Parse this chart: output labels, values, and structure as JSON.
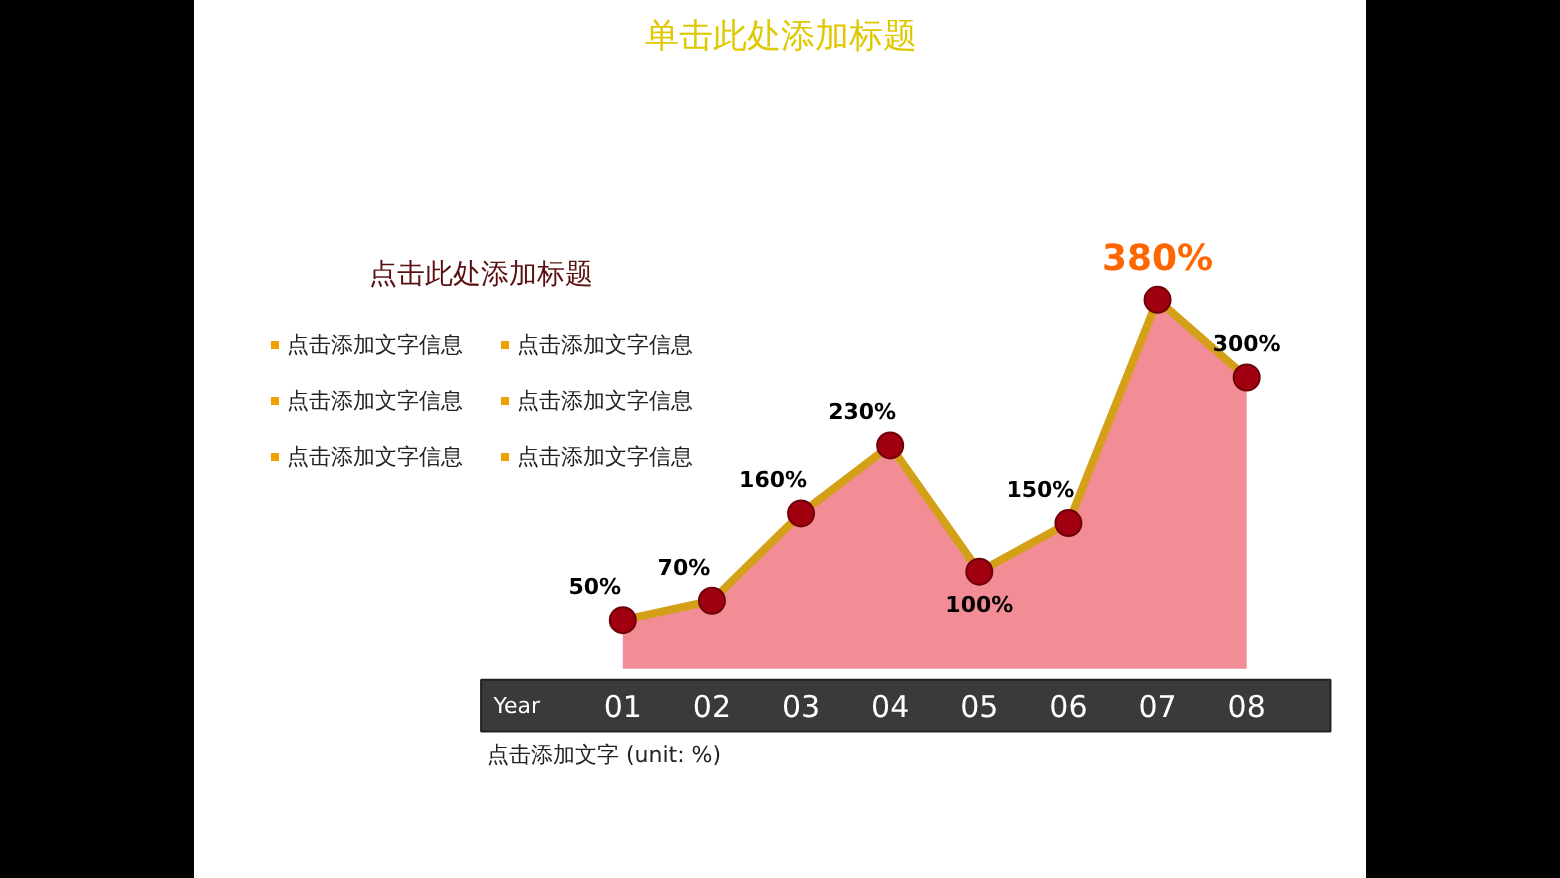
{
  "chart_data": {
    "type": "area",
    "title": "单击此处添加标题",
    "subtitle": "点击此处添加标题",
    "xlabel": "Year",
    "categories": [
      "01",
      "02",
      "03",
      "04",
      "05",
      "06",
      "07",
      "08"
    ],
    "series": [
      {
        "color": "#e8303f",
        "values": [
          50,
          70,
          160,
          230,
          100,
          150,
          380,
          300
        ],
        "value_labels": [
          "50%",
          "70%",
          "160%",
          "230%",
          "100%",
          "150%",
          "380%",
          "300%"
        ]
      }
    ],
    "marker": "circle",
    "grid": false,
    "tick_labels": "x",
    "annotations": [
      "点击添加文字信息",
      "点击添加文字信息",
      "点击添加文字信息",
      "点击添加文字信息",
      "点击添加文字信息",
      "点击添加文字信息",
      "点击添加文字  (unit: %)"
    ]
  }
}
